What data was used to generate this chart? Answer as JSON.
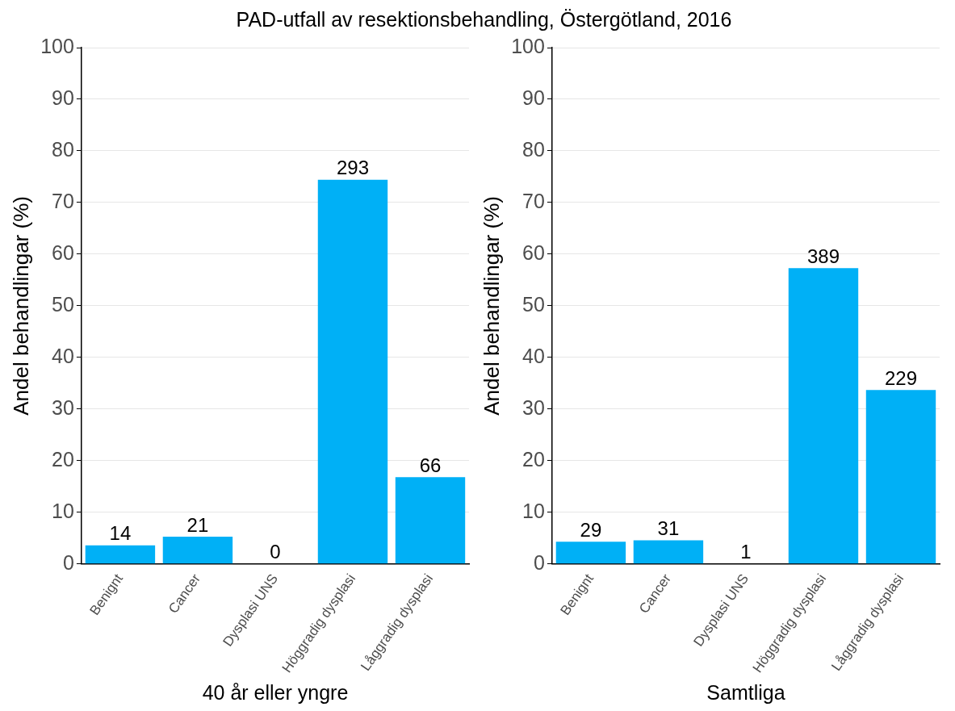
{
  "chart_data": [
    {
      "type": "bar",
      "title": "PAD-utfall av resektionsbehandling, Östergötland, 2016",
      "xlabel": "40 år eller yngre",
      "ylabel": "Andel behandlingar (%)",
      "categories": [
        "Benignt",
        "Cancer",
        "Dysplasi UNS",
        "Höggradig dysplasi",
        "Låggradig dysplasi"
      ],
      "values": [
        3.6,
        5.3,
        0,
        74.4,
        16.8
      ],
      "color": "#00b0f6",
      "ylim": [
        0,
        100
      ],
      "yticks": [
        0,
        10,
        20,
        30,
        40,
        50,
        60,
        70,
        80,
        90,
        100
      ],
      "grid": "y",
      "annotations": [
        {
          "text": "14",
          "x": "Benignt",
          "y": 3.6
        },
        {
          "text": "21",
          "x": "Cancer",
          "y": 5.3
        },
        {
          "text": "0",
          "x": "Dysplasi UNS",
          "y": 0
        },
        {
          "text": "293",
          "x": "Höggradig dysplasi",
          "y": 74.4
        },
        {
          "text": "66",
          "x": "Låggradig dysplasi",
          "y": 16.8
        }
      ]
    },
    {
      "type": "bar",
      "xlabel": "Samtliga",
      "ylabel": "Andel behandlingar (%)",
      "categories": [
        "Benignt",
        "Cancer",
        "Dysplasi UNS",
        "Höggradig dysplasi",
        "Låggradig dysplasi"
      ],
      "values": [
        4.3,
        4.6,
        0.1,
        57.3,
        33.7
      ],
      "color": "#00b0f6",
      "ylim": [
        0,
        100
      ],
      "yticks": [
        0,
        10,
        20,
        30,
        40,
        50,
        60,
        70,
        80,
        90,
        100
      ],
      "grid": "y",
      "annotations": [
        {
          "text": "29",
          "x": "Benignt",
          "y": 4.3
        },
        {
          "text": "31",
          "x": "Cancer",
          "y": 4.6
        },
        {
          "text": "1",
          "x": "Dysplasi UNS",
          "y": 0.1
        },
        {
          "text": "389",
          "x": "Höggradig dysplasi",
          "y": 57.3
        },
        {
          "text": "229",
          "x": "Låggradig dysplasi",
          "y": 33.7
        }
      ]
    }
  ]
}
